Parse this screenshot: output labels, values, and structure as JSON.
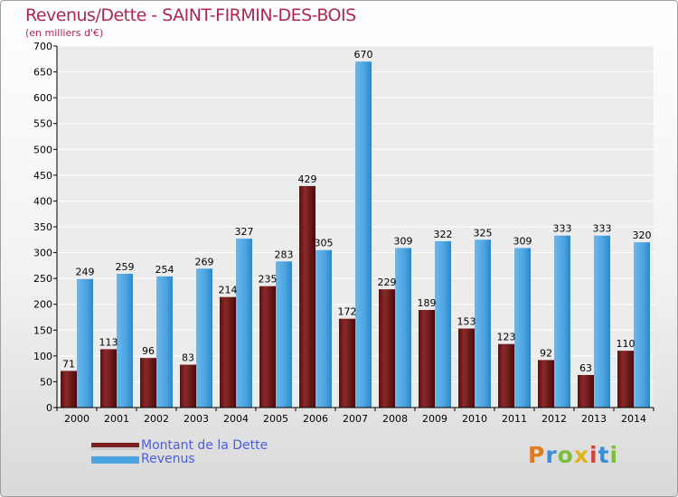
{
  "header": {
    "title": "Revenus/Dette - SAINT-FIRMIN-DES-BOIS",
    "subtitle": "(en milliers d'€)"
  },
  "colors": {
    "title": "#b0264e",
    "debt": "#7a1f1f",
    "revenue": "#4aa3e0",
    "legend_text": "#4a5ee0"
  },
  "chart_data": {
    "type": "bar",
    "categories": [
      "2000",
      "2001",
      "2002",
      "2003",
      "2004",
      "2005",
      "2006",
      "2007",
      "2008",
      "2009",
      "2010",
      "2011",
      "2012",
      "2013",
      "2014"
    ],
    "series": [
      {
        "name": "Montant de la Dette",
        "values": [
          71,
          113,
          96,
          83,
          214,
          235,
          429,
          172,
          229,
          189,
          153,
          123,
          92,
          63,
          110
        ]
      },
      {
        "name": "Revenus",
        "values": [
          249,
          259,
          254,
          269,
          327,
          283,
          305,
          670,
          309,
          322,
          325,
          309,
          333,
          333,
          320
        ]
      }
    ],
    "ylim": [
      0,
      700
    ],
    "yticks": [
      0,
      50,
      100,
      150,
      200,
      250,
      300,
      350,
      400,
      450,
      500,
      550,
      600,
      650,
      700
    ],
    "grid": true,
    "legend_position": "bottom-left"
  },
  "legend": {
    "items": [
      {
        "label": "Montant de la Dette",
        "color": "#7a1f1f"
      },
      {
        "label": "Revenus",
        "color": "#4aa3e0"
      }
    ]
  },
  "logo": {
    "text": "Proxiti"
  }
}
